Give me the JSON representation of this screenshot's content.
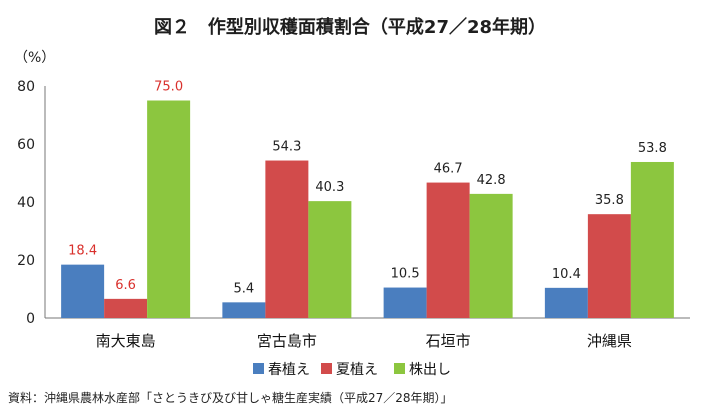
{
  "title": "図２　作型別収穫面積割合（平成27／28年期）",
  "unit_label": "（%）",
  "source": "資料：沖縄県農林水産部「さとうきび及び甘しゃ糖生産実績（平成27／28年期）」",
  "chart_data": {
    "type": "bar",
    "categories": [
      "南大東島",
      "宮古島市",
      "石垣市",
      "沖縄県"
    ],
    "series": [
      {
        "name": "春植え",
        "color": "#4a7ebf",
        "values": [
          18.4,
          5.4,
          10.5,
          10.4
        ]
      },
      {
        "name": "夏植え",
        "color": "#d24b4b",
        "values": [
          6.6,
          54.3,
          46.7,
          35.8
        ]
      },
      {
        "name": "株出し",
        "color": "#8cc63f",
        "values": [
          75.0,
          40.3,
          42.8,
          53.8
        ]
      }
    ],
    "label_colors": [
      [
        "#d9302c",
        "#d9302c",
        "#d9302c"
      ],
      [
        "#222222",
        "#222222",
        "#222222"
      ],
      [
        "#222222",
        "#222222",
        "#222222"
      ],
      [
        "#222222",
        "#222222",
        "#222222"
      ]
    ],
    "ylim": [
      0,
      80
    ],
    "yticks": [
      0,
      20,
      40,
      60,
      80
    ],
    "grid": false,
    "legend_position": "bottom"
  }
}
